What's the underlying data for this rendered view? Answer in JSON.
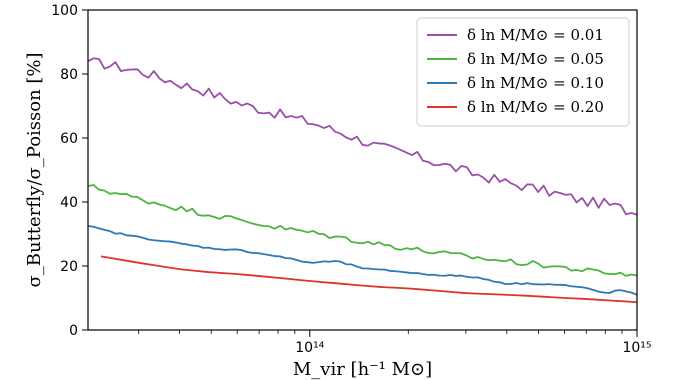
{
  "chart_data": {
    "type": "line",
    "title": "",
    "xlabel": "M_vir [h⁻¹ M⊙]",
    "ylabel": "σ_Butterfly/σ_Poisson [%]",
    "xscale": "log",
    "xlim": [
      21000000000000.0,
      1000000000000000.0
    ],
    "ylim": [
      0,
      100
    ],
    "xticks": [
      {
        "value": 100000000000000.0,
        "label": "10¹⁴"
      },
      {
        "value": 1000000000000000.0,
        "label": "10¹⁵"
      }
    ],
    "yticks": [
      0,
      20,
      40,
      60,
      80,
      100
    ],
    "grid": false,
    "legend_position": "top-right",
    "series": [
      {
        "name": "δ ln M/M⊙ = 0.01",
        "color": "#9a4fa8",
        "noise": 1.6,
        "x": [
          21000000000000.0,
          30000000000000.0,
          40000000000000.0,
          50000000000000.0,
          60000000000000.0,
          80000000000000.0,
          100000000000000.0,
          130000000000000.0,
          160000000000000.0,
          200000000000000.0,
          250000000000000.0,
          300000000000000.0,
          400000000000000.0,
          500000000000000.0,
          600000000000000.0,
          700000000000000.0,
          800000000000000.0,
          900000000000000.0,
          1000000000000000.0
        ],
        "y": [
          84,
          81,
          77,
          74,
          71,
          67.5,
          65,
          61,
          57.5,
          55,
          52,
          49.5,
          46,
          44,
          42,
          40,
          39.5,
          38,
          36
        ]
      },
      {
        "name": "δ ln M/M⊙ = 0.05",
        "color": "#4cb540",
        "noise": 0.9,
        "x": [
          21000000000000.0,
          30000000000000.0,
          40000000000000.0,
          50000000000000.0,
          60000000000000.0,
          80000000000000.0,
          100000000000000.0,
          130000000000000.0,
          160000000000000.0,
          200000000000000.0,
          250000000000000.0,
          300000000000000.0,
          400000000000000.0,
          500000000000000.0,
          600000000000000.0,
          700000000000000.0,
          800000000000000.0,
          900000000000000.0,
          1000000000000000.0
        ],
        "y": [
          45,
          41,
          38,
          36,
          34.5,
          32,
          30.5,
          28.5,
          27,
          25.5,
          24,
          23,
          21.5,
          20.5,
          19.5,
          18.5,
          18,
          17.5,
          17
        ]
      },
      {
        "name": "δ ln M/M⊙ = 0.10",
        "color": "#2e78b7",
        "noise": 0.25,
        "x": [
          21000000000000.0,
          25000000000000.0,
          30000000000000.0,
          40000000000000.0,
          50000000000000.0,
          60000000000000.0,
          70000000000000.0,
          80000000000000.0,
          100000000000000.0,
          120000000000000.0,
          150000000000000.0,
          180000000000000.0,
          220000000000000.0,
          270000000000000.0,
          320000000000000.0,
          400000000000000.0,
          500000000000000.0,
          600000000000000.0,
          700000000000000.0,
          800000000000000.0,
          900000000000000.0,
          1000000000000000.0
        ],
        "y": [
          32.5,
          30.5,
          29,
          27,
          25.5,
          25,
          24,
          23,
          21,
          21.5,
          19,
          18.5,
          17.5,
          17,
          16.5,
          14.5,
          14.5,
          14,
          13,
          11.5,
          12.5,
          11
        ]
      },
      {
        "name": "δ ln M/M⊙ = 0.20",
        "color": "#e0332b",
        "noise": 0,
        "x": [
          23000000000000.0,
          30000000000000.0,
          40000000000000.0,
          50000000000000.0,
          60000000000000.0,
          80000000000000.0,
          100000000000000.0,
          130000000000000.0,
          160000000000000.0,
          200000000000000.0,
          250000000000000.0,
          300000000000000.0,
          400000000000000.0,
          500000000000000.0,
          600000000000000.0,
          700000000000000.0,
          800000000000000.0,
          900000000000000.0,
          1000000000000000.0
        ],
        "y": [
          23,
          21,
          19,
          18,
          17.5,
          16.3,
          15.3,
          14.3,
          13.5,
          13,
          12.2,
          11.5,
          11,
          10.5,
          10,
          9.7,
          9.3,
          9,
          8.7
        ]
      }
    ]
  }
}
